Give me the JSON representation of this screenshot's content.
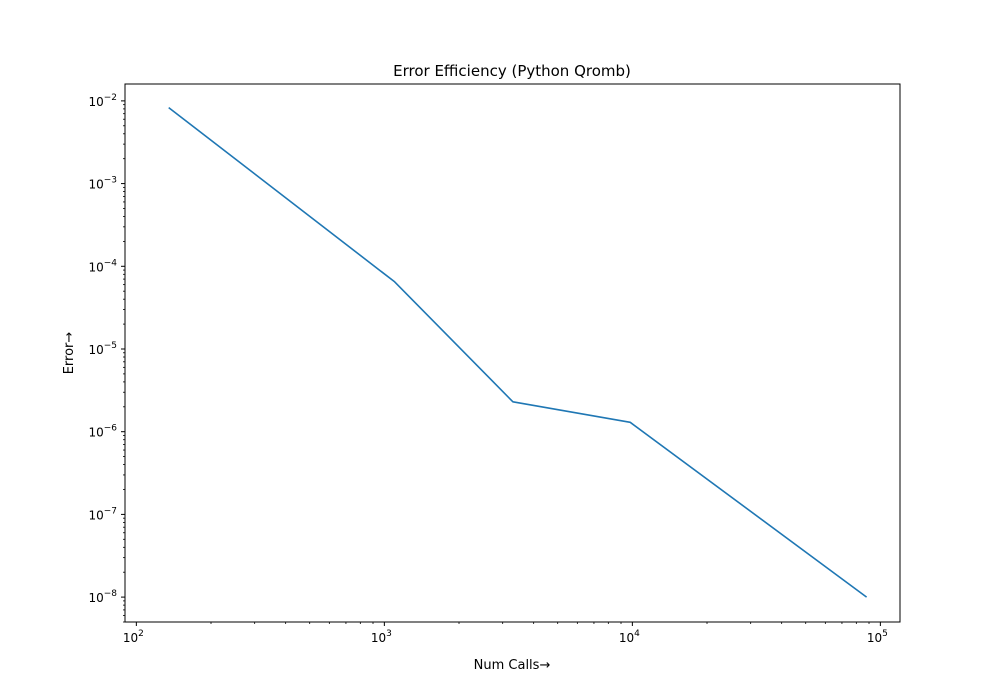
{
  "chart_data": {
    "type": "line",
    "title": "Error Efficiency (Python Qromb)",
    "xlabel": "Num Calls→",
    "ylabel": "Error→",
    "xscale": "log",
    "yscale": "log",
    "xlim": [
      90,
      120000
    ],
    "ylim": [
      5e-09,
      0.016
    ],
    "grid": false,
    "legend": "none",
    "x_ticks": [
      {
        "value": 100,
        "base": "10",
        "exp": "2"
      },
      {
        "value": 1000,
        "base": "10",
        "exp": "3"
      },
      {
        "value": 10000,
        "base": "10",
        "exp": "4"
      },
      {
        "value": 100000,
        "base": "10",
        "exp": "5"
      }
    ],
    "y_ticks": [
      {
        "value": 1e-08,
        "base": "10",
        "exp": "−8"
      },
      {
        "value": 1e-07,
        "base": "10",
        "exp": "−7"
      },
      {
        "value": 1e-06,
        "base": "10",
        "exp": "−6"
      },
      {
        "value": 1e-05,
        "base": "10",
        "exp": "−5"
      },
      {
        "value": 0.0001,
        "base": "10",
        "exp": "−4"
      },
      {
        "value": 0.001,
        "base": "10",
        "exp": "−3"
      },
      {
        "value": 0.01,
        "base": "10",
        "exp": "−2"
      }
    ],
    "series": [
      {
        "color": "#1f77b4",
        "x": [
          135,
          1100,
          3300,
          9800,
          88000
        ],
        "y": [
          0.0083,
          6.5e-05,
          2.3e-06,
          1.3e-06,
          1e-08
        ]
      }
    ]
  }
}
